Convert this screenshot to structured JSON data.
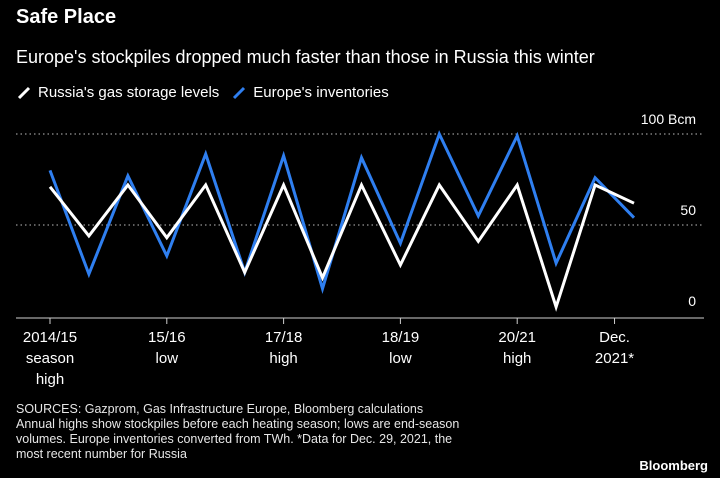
{
  "title": "Safe Place",
  "subtitle": "Europe's stockpiles dropped much faster than those in Russia this winter",
  "legend": [
    {
      "label": "Russia's gas storage levels",
      "color": "#ffffff"
    },
    {
      "label": "Europe's inventories",
      "color": "#2f7ff0"
    }
  ],
  "sources": [
    "SOURCES: Gazprom, Gas Infrastructure Europe, Bloomberg calculations",
    "Annual highs show stockpiles before each heating season; lows are end-season",
    "volumes. Europe inventories converted from TWh. *Data for Dec. 29, 2021, the",
    "most recent number for Russia"
  ],
  "brand": "Bloomberg",
  "chart_data": {
    "type": "line",
    "y_tick_labels": [
      "100 Bcm",
      "50",
      "0"
    ],
    "y_ticks": [
      100,
      50,
      0
    ],
    "ylim": [
      -10,
      100
    ],
    "x_tick_labels": [
      [
        "2014/15",
        "season",
        "high"
      ],
      [
        "15/16",
        "low"
      ],
      [
        "17/18",
        "high"
      ],
      [
        "18/19",
        "low"
      ],
      [
        "20/21",
        "high"
      ],
      [
        "Dec.",
        "2021*"
      ]
    ],
    "x_tick_positions": [
      0,
      3,
      6,
      9,
      12,
      14.5
    ],
    "x": [
      0,
      1,
      2,
      3,
      4,
      5,
      6,
      7,
      8,
      9,
      10,
      11,
      12,
      13,
      14,
      15
    ],
    "series": [
      {
        "name": "Russia's gas storage levels",
        "color": "#ffffff",
        "values": [
          71,
          44,
          72,
          43,
          72,
          24,
          72,
          21,
          72,
          28,
          72,
          41,
          72,
          5,
          72,
          62
        ]
      },
      {
        "name": "Europe's inventories",
        "color": "#2f7ff0",
        "values": [
          80,
          23,
          77,
          33,
          89,
          24,
          88,
          15,
          87,
          40,
          100,
          55,
          99,
          29,
          76,
          54
        ]
      }
    ],
    "grid": "dotted horizontal"
  }
}
